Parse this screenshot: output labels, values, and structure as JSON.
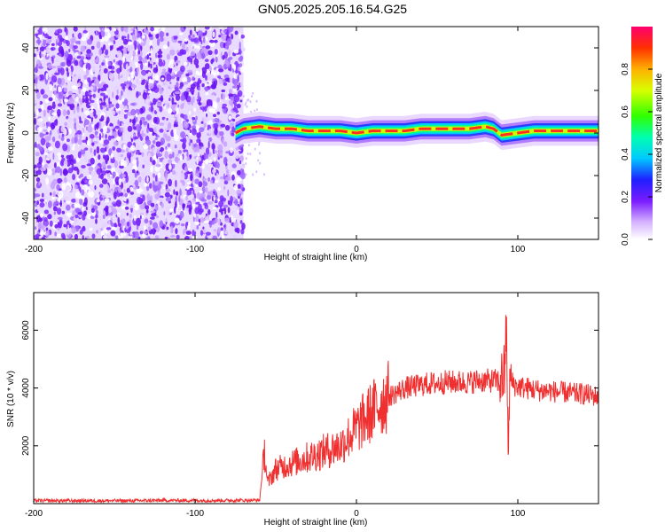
{
  "title": "GN05.2025.205.16.54.G25",
  "chart_data": [
    {
      "type": "heatmap",
      "xlabel": "Height of straight line (km)",
      "ylabel": "Frequency (Hz)",
      "xlim": [
        -200,
        150
      ],
      "ylim": [
        -50,
        50
      ],
      "xticks": [
        -200,
        -100,
        0,
        100
      ],
      "yticks": [
        -40,
        -20,
        0,
        20,
        40
      ],
      "noise_region_x": [
        -200,
        -70
      ],
      "ridge": {
        "x": [
          -75,
          -70,
          -60,
          -50,
          -40,
          -30,
          -20,
          -10,
          0,
          10,
          20,
          30,
          40,
          50,
          60,
          70,
          80,
          85,
          90,
          100,
          110,
          120,
          130,
          140,
          150
        ],
        "freq": [
          0,
          2,
          3,
          2,
          2,
          1,
          1,
          1,
          0,
          1,
          1,
          1,
          2,
          2,
          2,
          2,
          3,
          2,
          -1,
          0,
          1,
          1,
          1,
          1,
          1
        ]
      },
      "colorbar": {
        "label": "Normalized spectral amplitude",
        "range": [
          0,
          1
        ],
        "ticks": [
          0.0,
          0.2,
          0.4,
          0.6,
          0.8
        ]
      },
      "grid": false
    },
    {
      "type": "line",
      "xlabel": "Height of straight line (km)",
      "ylabel": "SNR (10 * v/v)",
      "xlim": [
        -200,
        150
      ],
      "ylim": [
        0,
        7300
      ],
      "xticks": [
        -200,
        -100,
        0,
        100
      ],
      "yticks": [
        2000,
        4000,
        6000
      ],
      "color": "#f03030",
      "grid": false,
      "series": [
        {
          "x": [
            -200,
            -180,
            -160,
            -140,
            -120,
            -100,
            -80,
            -60,
            -57,
            -55,
            -50,
            -45,
            -40,
            -35,
            -30,
            -25,
            -20,
            -15,
            -10,
            -5,
            0,
            5,
            10,
            15,
            20,
            25,
            30,
            35,
            40,
            45,
            50,
            55,
            60,
            65,
            70,
            75,
            80,
            85,
            88,
            90,
            92,
            93,
            94,
            95,
            96,
            98,
            100,
            105,
            110,
            115,
            120,
            125,
            130,
            135,
            140,
            145,
            150
          ],
          "values": [
            100,
            100,
            100,
            100,
            110,
            110,
            110,
            120,
            1800,
            700,
            1200,
            1300,
            1400,
            1500,
            1600,
            1700,
            1800,
            1900,
            2000,
            2300,
            2600,
            2900,
            3200,
            3500,
            3700,
            3850,
            4000,
            4050,
            4100,
            4150,
            4150,
            4200,
            4200,
            4200,
            4200,
            4250,
            4250,
            4250,
            4250,
            4300,
            4500,
            6700,
            1400,
            4300,
            4200,
            4100,
            4050,
            4000,
            3950,
            3900,
            3900,
            3850,
            3850,
            3800,
            3800,
            3750,
            3700
          ]
        }
      ]
    }
  ]
}
